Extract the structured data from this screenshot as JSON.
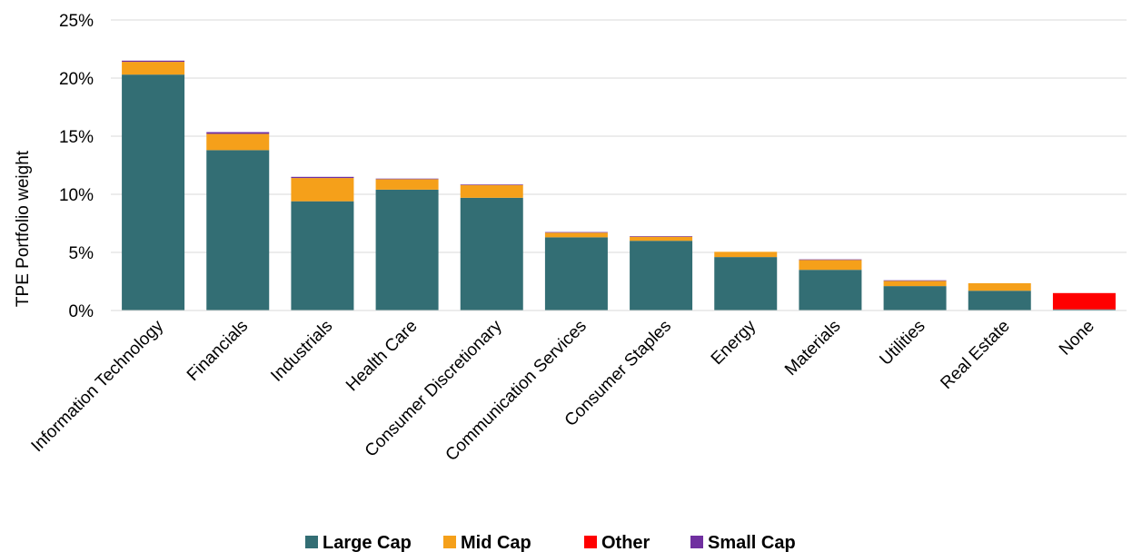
{
  "chart_data": {
    "type": "bar",
    "stacked": true,
    "title": "",
    "xlabel": "",
    "ylabel": "TPE Portfolio weight",
    "ylim": [
      0,
      25
    ],
    "yticks": [
      "0%",
      "5%",
      "10%",
      "15%",
      "20%",
      "25%"
    ],
    "ytick_values": [
      0,
      5,
      10,
      15,
      20,
      25
    ],
    "grid": true,
    "legend_position": "bottom",
    "categories": [
      "Information Technology",
      "Financials",
      "Industrials",
      "Health Care",
      "Consumer Discretionary",
      "Communication Services",
      "Consumer Staples",
      "Energy",
      "Materials",
      "Utilities",
      "Real Estate",
      "None"
    ],
    "series": [
      {
        "name": "Large Cap",
        "color": "#336e74",
        "values": [
          20.3,
          13.8,
          9.4,
          10.4,
          9.7,
          6.3,
          6.0,
          4.6,
          3.5,
          2.1,
          1.7,
          0.1
        ]
      },
      {
        "name": "Mid Cap",
        "color": "#f5a01a",
        "values": [
          1.1,
          1.4,
          2.0,
          0.9,
          1.1,
          0.4,
          0.35,
          0.45,
          0.85,
          0.45,
          0.65,
          0.0
        ]
      },
      {
        "name": "Other",
        "color": "#ff0000",
        "values": [
          0,
          0,
          0,
          0,
          0,
          0,
          0,
          0,
          0,
          0,
          0,
          1.4
        ]
      },
      {
        "name": "Small Cap",
        "color": "#7030a0",
        "values": [
          0.1,
          0.15,
          0.1,
          0.05,
          0.05,
          0.05,
          0.05,
          0.0,
          0.05,
          0.05,
          0.0,
          0.0
        ]
      }
    ]
  }
}
